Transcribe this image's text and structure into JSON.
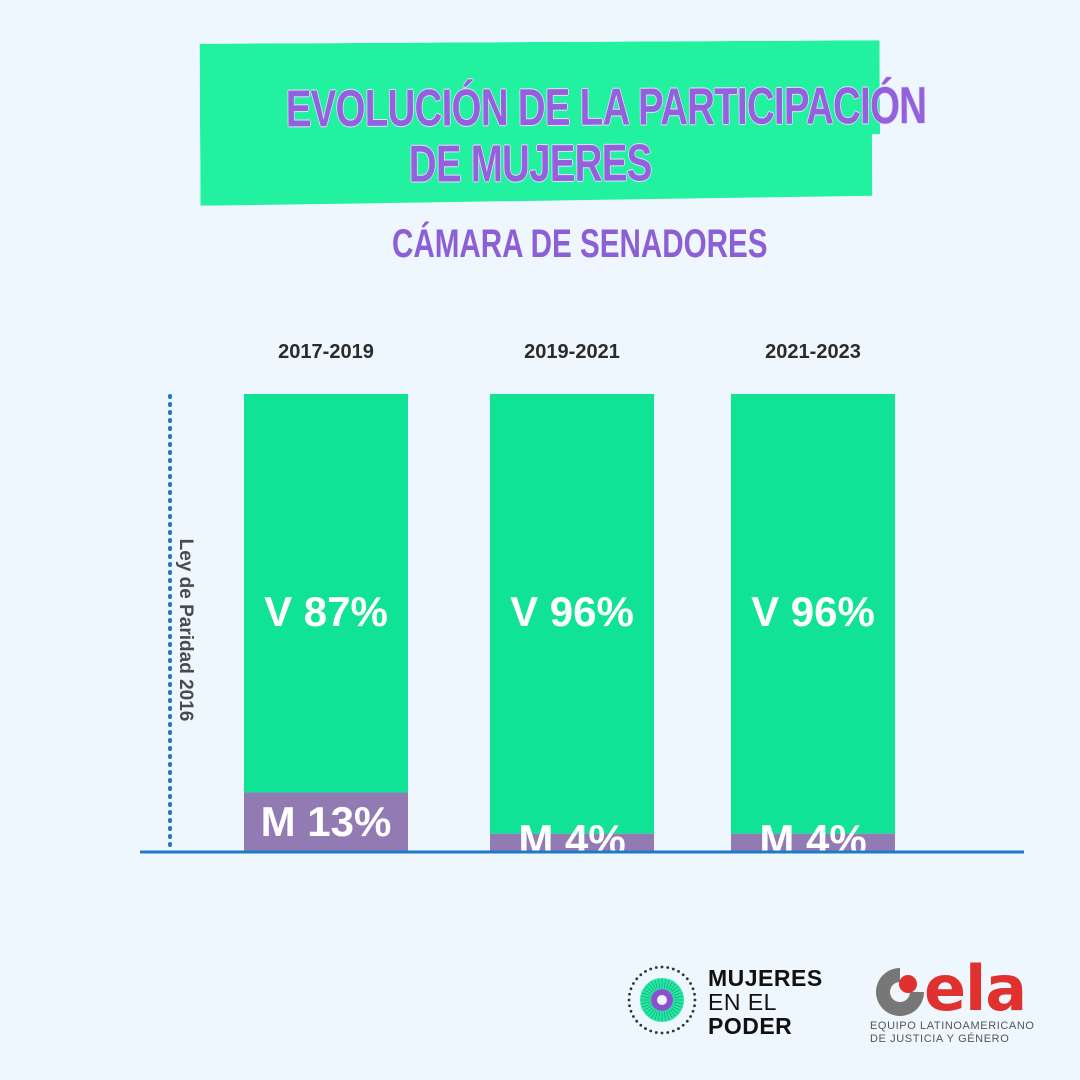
{
  "title": {
    "line1": "EVOLUCIÓN DE LA PARTICIPACIÓN",
    "line2": "DE MUJERES"
  },
  "subtitle": "CÁMARA DE SENADORES",
  "chart_data": {
    "type": "bar",
    "stacked": true,
    "categories": [
      "2017-2019",
      "2019-2021",
      "2021-2023"
    ],
    "series": [
      {
        "code": "M",
        "values": [
          13,
          4,
          4
        ],
        "color": "#927ab3"
      },
      {
        "code": "V",
        "values": [
          87,
          96,
          96
        ],
        "color": "#10e296"
      }
    ],
    "ylim": [
      0,
      100
    ],
    "annotation": "Ley de Paridad 2016",
    "colors": {
      "axis": "#1f78c8",
      "guide": "#1f78c8",
      "label": "#ffffff"
    }
  },
  "logos": {
    "mujeres_en_el_poder": {
      "line1": "MUJERES",
      "line2": "EN EL",
      "line3": "PODER"
    },
    "ela": {
      "wordmark": "ela",
      "tag_line1": "EQUIPO LATINOAMERICANO",
      "tag_line2": "DE JUSTICIA Y GÉNERO"
    }
  }
}
